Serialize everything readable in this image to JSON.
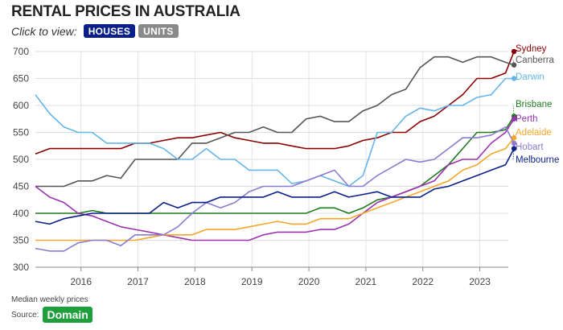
{
  "header": {
    "title": "RENTAL PRICES IN AUSTRALIA",
    "view_label": "Click to view:",
    "houses_label": "HOUSES",
    "units_label": "UNITS"
  },
  "footer": {
    "note": "Median weekly prices",
    "source_label": "Source:",
    "source_name": "Domain"
  },
  "chart_data": {
    "type": "line",
    "title": "RENTAL PRICES IN AUSTRALIA",
    "xlabel": "",
    "ylabel": "",
    "ylim": [
      300,
      700
    ],
    "yticks": [
      300,
      350,
      400,
      450,
      500,
      550,
      600,
      650,
      700
    ],
    "xlim": [
      2015.2,
      2023.5
    ],
    "xticks": [
      2016,
      2017,
      2018,
      2019,
      2020,
      2021,
      2022,
      2023
    ],
    "grid": true,
    "legend": "right end labels",
    "x": [
      2015.2,
      2015.45,
      2015.7,
      2015.95,
      2016.2,
      2016.45,
      2016.7,
      2016.95,
      2017.2,
      2017.45,
      2017.7,
      2017.95,
      2018.2,
      2018.45,
      2018.7,
      2018.95,
      2019.2,
      2019.45,
      2019.7,
      2019.95,
      2020.2,
      2020.45,
      2020.7,
      2020.95,
      2021.2,
      2021.45,
      2021.7,
      2021.95,
      2022.2,
      2022.45,
      2022.7,
      2022.95,
      2023.2,
      2023.45
    ],
    "series": [
      {
        "name": "Sydney",
        "color": "#8b0000",
        "values": [
          510,
          520,
          520,
          520,
          520,
          520,
          520,
          530,
          530,
          535,
          540,
          540,
          545,
          550,
          540,
          535,
          530,
          530,
          525,
          520,
          520,
          520,
          525,
          535,
          540,
          550,
          550,
          570,
          580,
          600,
          620,
          650,
          650,
          660
        ]
      },
      {
        "name": "Canberra",
        "color": "#555555",
        "values": [
          450,
          450,
          450,
          460,
          460,
          470,
          465,
          500,
          500,
          500,
          500,
          530,
          530,
          540,
          550,
          550,
          560,
          550,
          550,
          575,
          580,
          570,
          570,
          590,
          600,
          620,
          630,
          670,
          690,
          690,
          680,
          690,
          690,
          680
        ]
      },
      {
        "name": "Darwin",
        "color": "#63b5ea",
        "values": [
          620,
          585,
          560,
          550,
          550,
          530,
          530,
          530,
          530,
          520,
          500,
          500,
          520,
          500,
          500,
          480,
          480,
          480,
          455,
          460,
          470,
          460,
          450,
          470,
          550,
          550,
          580,
          595,
          590,
          600,
          600,
          615,
          620,
          650
        ]
      },
      {
        "name": "Brisbane",
        "color": "#1e7a1e",
        "values": [
          400,
          400,
          400,
          400,
          405,
          400,
          400,
          400,
          400,
          400,
          400,
          400,
          400,
          400,
          400,
          400,
          400,
          400,
          400,
          400,
          410,
          410,
          400,
          410,
          425,
          430,
          440,
          450,
          470,
          490,
          520,
          550,
          550,
          555
        ]
      },
      {
        "name": "Perth",
        "color": "#9b30b0",
        "values": [
          450,
          430,
          420,
          400,
          395,
          385,
          375,
          370,
          365,
          360,
          355,
          350,
          350,
          350,
          350,
          350,
          360,
          365,
          365,
          365,
          370,
          370,
          380,
          400,
          420,
          430,
          440,
          450,
          460,
          490,
          500,
          500,
          530,
          550
        ]
      },
      {
        "name": "Adelaide",
        "color": "#f4a62a",
        "values": [
          350,
          350,
          350,
          350,
          350,
          350,
          350,
          350,
          355,
          360,
          360,
          360,
          370,
          370,
          370,
          375,
          380,
          385,
          380,
          380,
          390,
          390,
          390,
          400,
          410,
          420,
          430,
          440,
          450,
          460,
          480,
          490,
          510,
          520
        ]
      },
      {
        "name": "Hobart",
        "color": "#8c7bd0",
        "values": [
          335,
          330,
          330,
          345,
          350,
          350,
          340,
          360,
          360,
          360,
          375,
          400,
          420,
          410,
          420,
          440,
          450,
          450,
          450,
          460,
          470,
          480,
          450,
          450,
          470,
          485,
          500,
          495,
          500,
          520,
          540,
          540,
          545,
          560
        ]
      },
      {
        "name": "Melbourne",
        "color": "#0b1f88",
        "values": [
          385,
          380,
          390,
          395,
          400,
          400,
          400,
          400,
          400,
          420,
          410,
          420,
          420,
          430,
          430,
          430,
          430,
          440,
          430,
          430,
          430,
          440,
          430,
          435,
          440,
          430,
          430,
          430,
          445,
          450,
          460,
          470,
          480,
          490
        ]
      }
    ],
    "endpoints": [
      {
        "name": "Sydney",
        "x": 2023.6,
        "y": 700
      },
      {
        "name": "Canberra",
        "x": 2023.6,
        "y": 675
      },
      {
        "name": "Darwin",
        "x": 2023.6,
        "y": 650
      },
      {
        "name": "Brisbane",
        "x": 2023.6,
        "y": 580
      },
      {
        "name": "Perth",
        "x": 2023.6,
        "y": 575
      },
      {
        "name": "Adelaide",
        "x": 2023.6,
        "y": 540
      },
      {
        "name": "Hobart",
        "x": 2023.6,
        "y": 530
      },
      {
        "name": "Melbourne",
        "x": 2023.6,
        "y": 520
      }
    ],
    "label_order": [
      "Sydney",
      "Canberra",
      "Darwin",
      "Brisbane",
      "Perth",
      "Adelaide",
      "Hobart",
      "Melbourne"
    ]
  }
}
